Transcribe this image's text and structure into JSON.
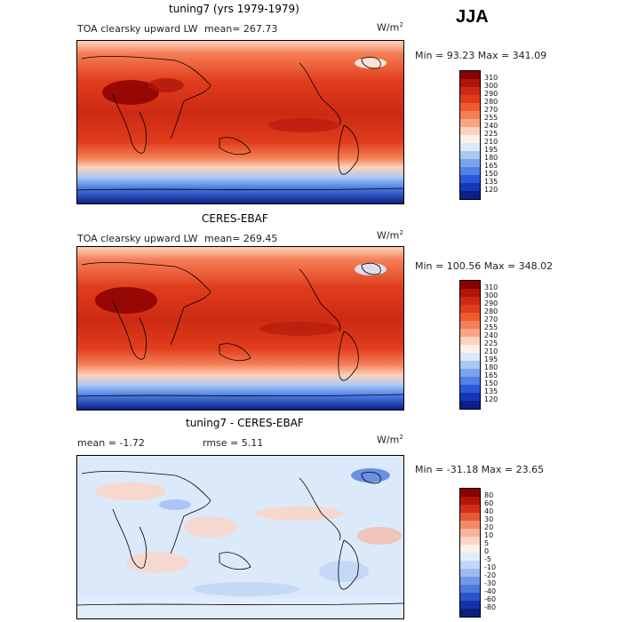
{
  "season": "JJA",
  "panels": [
    {
      "title": "tuning7 (yrs 1979-1979)",
      "field": "TOA clearsky upward LW",
      "mean_text": "mean= 267.73",
      "units": "W/m",
      "units_sup": "2",
      "minmax": "Min =  93.23 Max = 341.09",
      "levels": [
        "310",
        "300",
        "290",
        "280",
        "270",
        "255",
        "240",
        "225",
        "210",
        "195",
        "180",
        "165",
        "150",
        "135",
        "120"
      ],
      "colors": [
        "#8b0000",
        "#b0170a",
        "#cc2a13",
        "#e03c1c",
        "#ee5a2f",
        "#f47e55",
        "#f9a483",
        "#fcd3bd",
        "#fdf0e6",
        "#dce9fb",
        "#a9c8f4",
        "#7ca4ed",
        "#5082e6",
        "#2a59d9",
        "#1537b8",
        "#0a1f8a"
      ]
    },
    {
      "title": "CERES-EBAF",
      "field": "TOA clearsky upward LW",
      "mean_text": "mean= 269.45",
      "units": "W/m",
      "units_sup": "2",
      "minmax": "Min = 100.56 Max = 348.02",
      "levels": [
        "310",
        "300",
        "290",
        "280",
        "270",
        "255",
        "240",
        "225",
        "210",
        "195",
        "180",
        "165",
        "150",
        "135",
        "120"
      ],
      "colors": [
        "#8b0000",
        "#b0170a",
        "#cc2a13",
        "#e03c1c",
        "#ee5a2f",
        "#f47e55",
        "#f9a483",
        "#fcd3bd",
        "#fdf0e6",
        "#dce9fb",
        "#a9c8f4",
        "#7ca4ed",
        "#5082e6",
        "#2a59d9",
        "#1537b8",
        "#0a1f8a"
      ]
    },
    {
      "title": "tuning7 - CERES-EBAF",
      "mean_text": "mean =   -1.72",
      "rmse_text": "rmse =   5.11",
      "units": "W/m",
      "units_sup": "2",
      "minmax": "Min = -31.18 Max =  23.65",
      "levels": [
        "80",
        "60",
        "40",
        "30",
        "20",
        "10",
        "5",
        "0",
        "-5",
        "-10",
        "-20",
        "-30",
        "-40",
        "-60",
        "-80"
      ],
      "colors": [
        "#8b0000",
        "#b0170a",
        "#d0301a",
        "#e65a33",
        "#f28a6a",
        "#f8b49b",
        "#fbd5c6",
        "#fdf0ea",
        "#e2edfb",
        "#c2d7f6",
        "#9dbbf0",
        "#7399e6",
        "#4f79dc",
        "#2c55cc",
        "#1433a8",
        "#0a1f7a"
      ]
    }
  ]
}
